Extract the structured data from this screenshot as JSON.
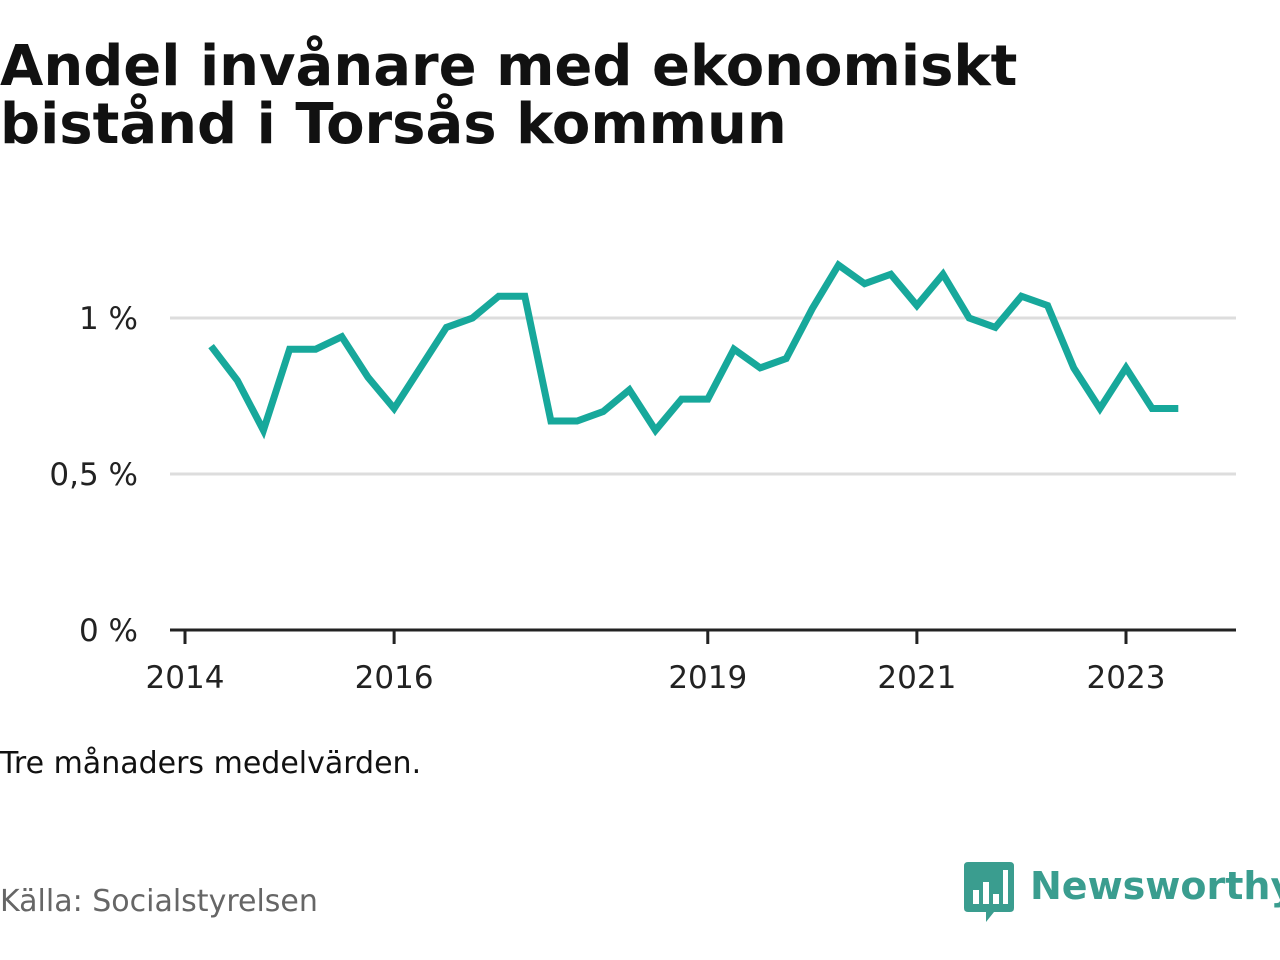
{
  "title": "Andel invånare med ekonomiskt bistånd i Torsås kommun",
  "note": "Tre månaders medelvärden.",
  "source": "Källa: Socialstyrelsen",
  "brand": {
    "name": "Newsworthy",
    "color": "#3a9d8f",
    "icon": "newsworthy-logo-icon"
  },
  "colors": {
    "line": "#17a89b",
    "grid": "#dddddd",
    "axis": "#222222"
  },
  "chart_data": {
    "type": "line",
    "title": "Andel invånare med ekonomiskt bistånd i Torsås kommun",
    "xlabel": "",
    "ylabel": "",
    "x_tick_labels": [
      "2014",
      "2016",
      "2019",
      "2021",
      "2023"
    ],
    "y_tick_labels": [
      "0 %",
      "0,5 %",
      "1 %"
    ],
    "y_ticks": [
      0,
      0.5,
      1
    ],
    "ylim": [
      0,
      1.17
    ],
    "xlim": [
      "2014-01",
      "2024-03"
    ],
    "grid": true,
    "series": [
      {
        "color": "#17a89b",
        "x": [
          "2014-04",
          "2014-07",
          "2014-10",
          "2015-01",
          "2015-04",
          "2015-07",
          "2015-10",
          "2016-01",
          "2016-04",
          "2016-07",
          "2016-10",
          "2017-01",
          "2017-04",
          "2017-07",
          "2017-10",
          "2018-01",
          "2018-04",
          "2018-07",
          "2018-10",
          "2019-01",
          "2019-04",
          "2019-07",
          "2019-10",
          "2020-01",
          "2020-04",
          "2020-07",
          "2020-10",
          "2021-01",
          "2021-04",
          "2021-07",
          "2021-10",
          "2022-01",
          "2022-04",
          "2022-07",
          "2022-10",
          "2023-01",
          "2023-04",
          "2023-07"
        ],
        "values": [
          0.91,
          0.8,
          0.64,
          0.9,
          0.9,
          0.94,
          0.81,
          0.71,
          0.84,
          0.97,
          1.0,
          1.07,
          1.07,
          0.67,
          0.67,
          0.7,
          0.77,
          0.64,
          0.74,
          0.74,
          0.9,
          0.84,
          0.87,
          1.03,
          1.17,
          1.11,
          1.14,
          1.04,
          1.14,
          1.0,
          0.97,
          1.07,
          1.04,
          0.84,
          0.71,
          0.84,
          0.71,
          0.71
        ]
      }
    ]
  }
}
